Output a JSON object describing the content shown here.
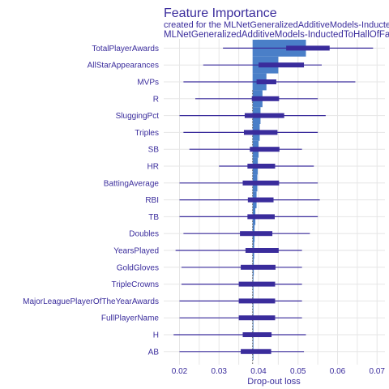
{
  "chart_data": {
    "type": "bar",
    "title": "Feature Importance",
    "subtitle": "created for the MLNetGeneralizedAdditiveModels-InductedToHallOfFame model",
    "model_label": "MLNetGeneralizedAdditiveModels-InductedToHallOfFame",
    "xlabel": "Drop-out loss",
    "xlim": [
      0.016,
      0.072
    ],
    "xticks": [
      0.02,
      0.03,
      0.04,
      0.05,
      0.06,
      0.07
    ],
    "xtick_labels": [
      "0.02",
      "0.03",
      "0.04",
      "0.05",
      "0.06",
      "0.07"
    ],
    "baseline": 0.0385,
    "grid": true,
    "legend": "none",
    "colors": {
      "bar": "#4a7fc8",
      "box": "#3a2c9c",
      "whisker": "#3a2c9c",
      "grid": "#e6e6e6",
      "text": "#3a2c9c"
    },
    "categories": [
      "TotalPlayerAwards",
      "AllStarAppearances",
      "MVPs",
      "R",
      "SluggingPct",
      "Triples",
      "SB",
      "HR",
      "BattingAverage",
      "RBI",
      "TB",
      "Doubles",
      "YearsPlayed",
      "GoldGloves",
      "TripleCrowns",
      "MajorLeaguePlayerOfTheYearAwards",
      "FullPlayerName",
      "H",
      "AB"
    ],
    "values": [
      0.052,
      0.045,
      0.042,
      0.041,
      0.0405,
      0.0403,
      0.04,
      0.0398,
      0.0397,
      0.0395,
      0.0392,
      0.039,
      0.0389,
      0.0388,
      0.0387,
      0.0386,
      0.0386,
      0.0385,
      0.0385
    ],
    "box_low": [
      0.047,
      0.04,
      0.0395,
      0.0383,
      0.0365,
      0.0363,
      0.0378,
      0.0372,
      0.036,
      0.0373,
      0.0372,
      0.0353,
      0.0367,
      0.0355,
      0.035,
      0.035,
      0.035,
      0.036,
      0.0355
    ],
    "box_high": [
      0.058,
      0.0515,
      0.0445,
      0.0452,
      0.0465,
      0.0448,
      0.0453,
      0.0442,
      0.0452,
      0.0438,
      0.0441,
      0.0435,
      0.0451,
      0.0443,
      0.0442,
      0.0442,
      0.0442,
      0.0433,
      0.0432
    ],
    "whisk_low": [
      0.031,
      0.026,
      0.021,
      0.024,
      0.02,
      0.021,
      0.0225,
      0.03,
      0.02,
      0.02,
      0.02,
      0.021,
      0.019,
      0.0205,
      0.0205,
      0.02,
      0.02,
      0.0185,
      0.02
    ],
    "whisk_high": [
      0.069,
      0.056,
      0.0645,
      0.055,
      0.057,
      0.055,
      0.051,
      0.054,
      0.055,
      0.0555,
      0.055,
      0.053,
      0.051,
      0.051,
      0.051,
      0.051,
      0.051,
      0.052,
      0.0515
    ]
  }
}
